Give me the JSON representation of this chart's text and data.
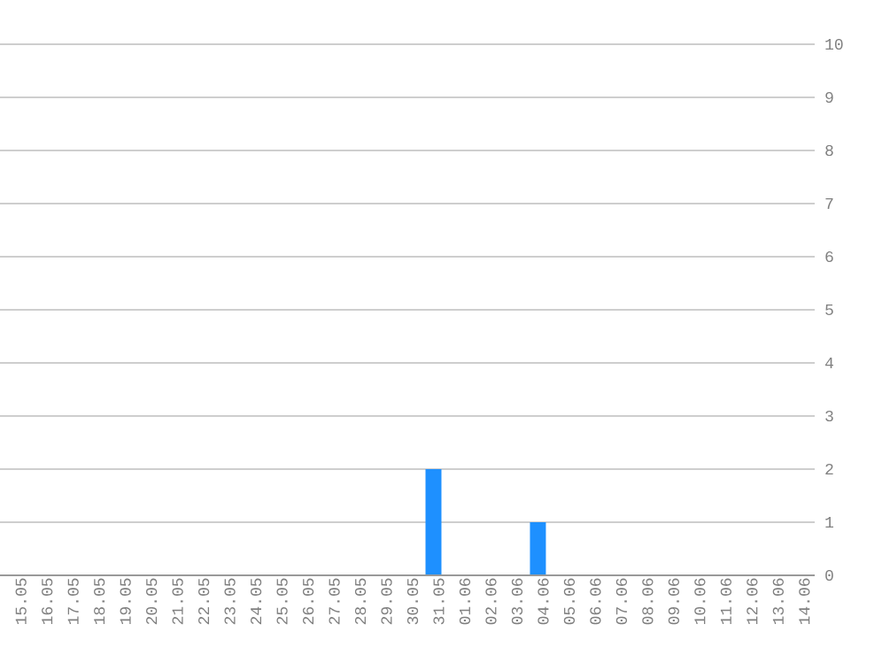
{
  "chart_data": {
    "type": "bar",
    "categories": [
      "15.05",
      "16.05",
      "17.05",
      "18.05",
      "19.05",
      "20.05",
      "21.05",
      "22.05",
      "23.05",
      "24.05",
      "25.05",
      "26.05",
      "27.05",
      "28.05",
      "29.05",
      "30.05",
      "31.05",
      "01.06",
      "02.06",
      "03.06",
      "04.06",
      "05.06",
      "06.06",
      "07.06",
      "08.06",
      "09.06",
      "10.06",
      "11.06",
      "12.06",
      "13.06",
      "14.06"
    ],
    "values": [
      0,
      0,
      0,
      0,
      0,
      0,
      0,
      0,
      0,
      0,
      0,
      0,
      0,
      0,
      0,
      0,
      2,
      0,
      0,
      0,
      1,
      0,
      0,
      0,
      0,
      0,
      0,
      0,
      0,
      0,
      0
    ],
    "color": "#1e90ff",
    "ylim": [
      0,
      10
    ],
    "yticks": [
      0,
      1,
      2,
      3,
      4,
      5,
      6,
      7,
      8,
      9,
      10
    ],
    "grid": "y"
  }
}
